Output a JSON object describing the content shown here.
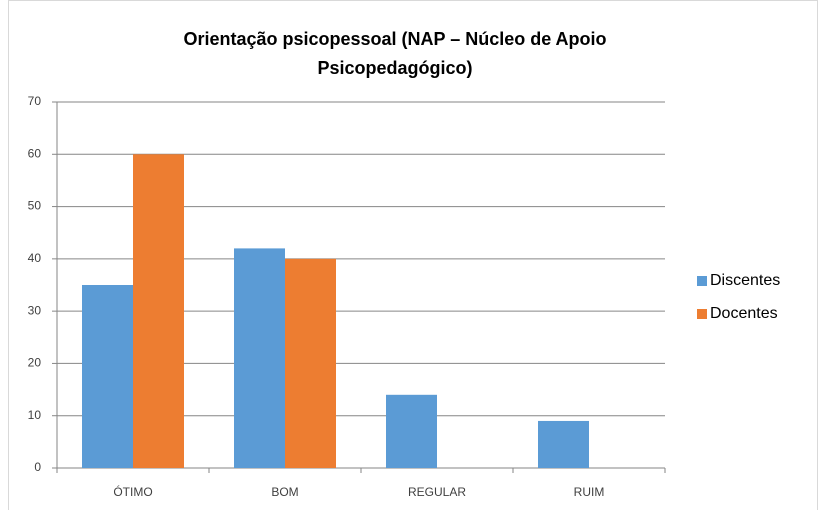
{
  "chart_data": {
    "type": "bar",
    "title": "Orientação psicopessoal (NAP – Núcleo de Apoio Psicopedagógico)",
    "categories": [
      "ÓTIMO",
      "BOM",
      "REGULAR",
      "RUIM"
    ],
    "series": [
      {
        "name": "Discentes",
        "color": "#5b9bd5",
        "values": [
          35,
          42,
          14,
          9
        ]
      },
      {
        "name": "Docentes",
        "color": "#ed7d31",
        "values": [
          60,
          40,
          0,
          0
        ]
      }
    ],
    "ylim": [
      0,
      70
    ],
    "yticks": [
      0,
      10,
      20,
      30,
      40,
      50,
      60,
      70
    ],
    "grid": true,
    "legend": "right"
  }
}
